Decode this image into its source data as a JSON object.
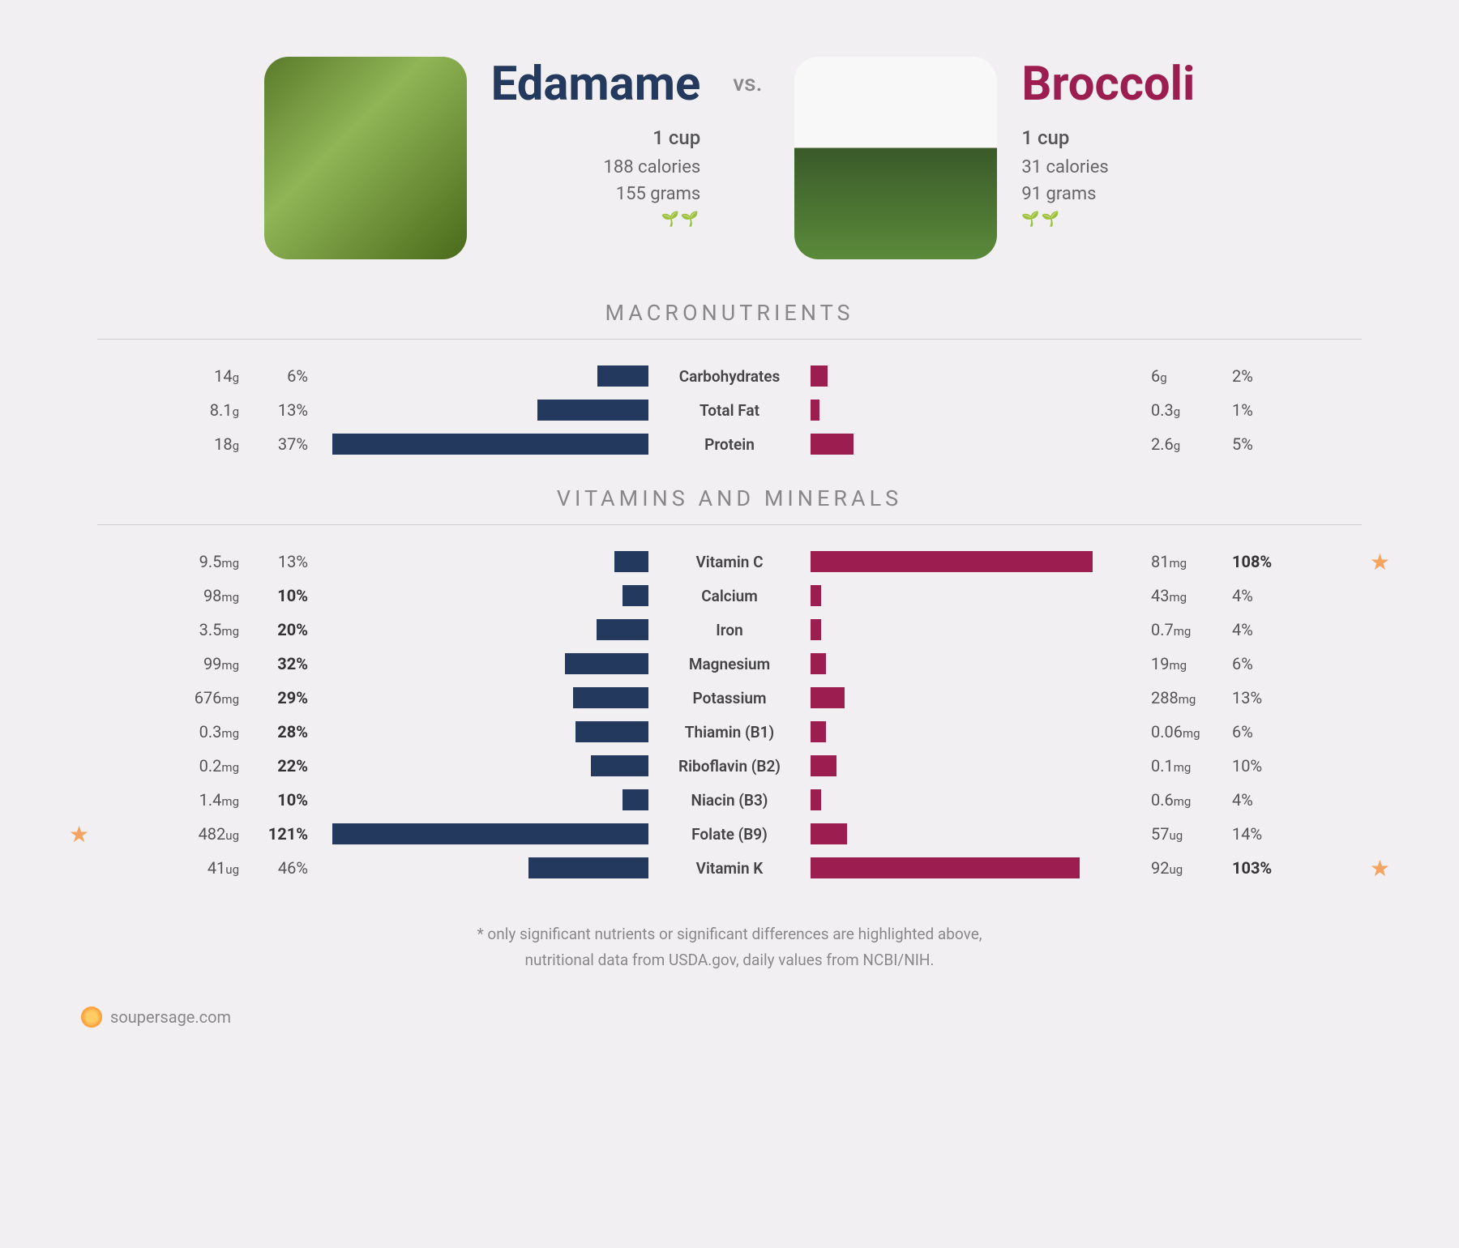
{
  "colors": {
    "left": "#233a5e",
    "right": "#9c1e51",
    "background": "#f1eff2",
    "text_muted": "#888",
    "star": "#f4a460"
  },
  "left_food": {
    "name": "Edamame",
    "serving": "1 cup",
    "calories": "188 calories",
    "grams": "155 grams",
    "sprout": "🌱🌱",
    "img_style": "linear-gradient(135deg,#5a7a2a 0%,#8fb556 40%,#4a6a1a 100%)"
  },
  "right_food": {
    "name": "Broccoli",
    "serving": "1 cup",
    "calories": "31 calories",
    "grams": "91 grams",
    "sprout": "🌱🌱",
    "img_style": "linear-gradient(180deg,#f8f8f8 0%,#f8f8f8 45%,#3a5a2a 45%,#5a8a3a 100%)"
  },
  "vs": "vs.",
  "sections": {
    "macro": "MACRONUTRIENTS",
    "vita": "VITAMINS AND MINERALS"
  },
  "macro_max_bar_pct": 37,
  "macro_rows": [
    {
      "label": "Carbohydrates",
      "l_amt": "14",
      "l_unit": "g",
      "l_pct": "6%",
      "l_bar": 6,
      "r_amt": "6",
      "r_unit": "g",
      "r_pct": "2%",
      "r_bar": 2,
      "l_bold": false,
      "r_bold": false
    },
    {
      "label": "Total Fat",
      "l_amt": "8.1",
      "l_unit": "g",
      "l_pct": "13%",
      "l_bar": 13,
      "r_amt": "0.3",
      "r_unit": "g",
      "r_pct": "1%",
      "r_bar": 1,
      "l_bold": false,
      "r_bold": false
    },
    {
      "label": "Protein",
      "l_amt": "18",
      "l_unit": "g",
      "l_pct": "37%",
      "l_bar": 37,
      "r_amt": "2.6",
      "r_unit": "g",
      "r_pct": "5%",
      "r_bar": 5,
      "l_bold": false,
      "r_bold": false
    }
  ],
  "vita_max_bar_pct": 121,
  "vita_rows": [
    {
      "label": "Vitamin C",
      "l_amt": "9.5",
      "l_unit": "mg",
      "l_pct": "13%",
      "l_bar": 13,
      "r_amt": "81",
      "r_unit": "mg",
      "r_pct": "108%",
      "r_bar": 108,
      "l_bold": false,
      "r_bold": true,
      "r_star": true
    },
    {
      "label": "Calcium",
      "l_amt": "98",
      "l_unit": "mg",
      "l_pct": "10%",
      "l_bar": 10,
      "r_amt": "43",
      "r_unit": "mg",
      "r_pct": "4%",
      "r_bar": 4,
      "l_bold": true,
      "r_bold": false
    },
    {
      "label": "Iron",
      "l_amt": "3.5",
      "l_unit": "mg",
      "l_pct": "20%",
      "l_bar": 20,
      "r_amt": "0.7",
      "r_unit": "mg",
      "r_pct": "4%",
      "r_bar": 4,
      "l_bold": true,
      "r_bold": false
    },
    {
      "label": "Magnesium",
      "l_amt": "99",
      "l_unit": "mg",
      "l_pct": "32%",
      "l_bar": 32,
      "r_amt": "19",
      "r_unit": "mg",
      "r_pct": "6%",
      "r_bar": 6,
      "l_bold": true,
      "r_bold": false
    },
    {
      "label": "Potassium",
      "l_amt": "676",
      "l_unit": "mg",
      "l_pct": "29%",
      "l_bar": 29,
      "r_amt": "288",
      "r_unit": "mg",
      "r_pct": "13%",
      "r_bar": 13,
      "l_bold": true,
      "r_bold": false
    },
    {
      "label": "Thiamin (B1)",
      "l_amt": "0.3",
      "l_unit": "mg",
      "l_pct": "28%",
      "l_bar": 28,
      "r_amt": "0.06",
      "r_unit": "mg",
      "r_pct": "6%",
      "r_bar": 6,
      "l_bold": true,
      "r_bold": false
    },
    {
      "label": "Riboflavin (B2)",
      "l_amt": "0.2",
      "l_unit": "mg",
      "l_pct": "22%",
      "l_bar": 22,
      "r_amt": "0.1",
      "r_unit": "mg",
      "r_pct": "10%",
      "r_bar": 10,
      "l_bold": true,
      "r_bold": false
    },
    {
      "label": "Niacin (B3)",
      "l_amt": "1.4",
      "l_unit": "mg",
      "l_pct": "10%",
      "l_bar": 10,
      "r_amt": "0.6",
      "r_unit": "mg",
      "r_pct": "4%",
      "r_bar": 4,
      "l_bold": true,
      "r_bold": false
    },
    {
      "label": "Folate (B9)",
      "l_amt": "482",
      "l_unit": "ug",
      "l_pct": "121%",
      "l_bar": 121,
      "r_amt": "57",
      "r_unit": "ug",
      "r_pct": "14%",
      "r_bar": 14,
      "l_bold": true,
      "r_bold": false,
      "l_star": true
    },
    {
      "label": "Vitamin K",
      "l_amt": "41",
      "l_unit": "ug",
      "l_pct": "46%",
      "l_bar": 46,
      "r_amt": "92",
      "r_unit": "ug",
      "r_pct": "103%",
      "r_bar": 103,
      "l_bold": false,
      "r_bold": true,
      "r_star": true
    }
  ],
  "footnote1": "* only significant nutrients or significant differences are highlighted above,",
  "footnote2": "nutritional data from USDA.gov, daily values from NCBI/NIH.",
  "brand": "soupersage.com"
}
